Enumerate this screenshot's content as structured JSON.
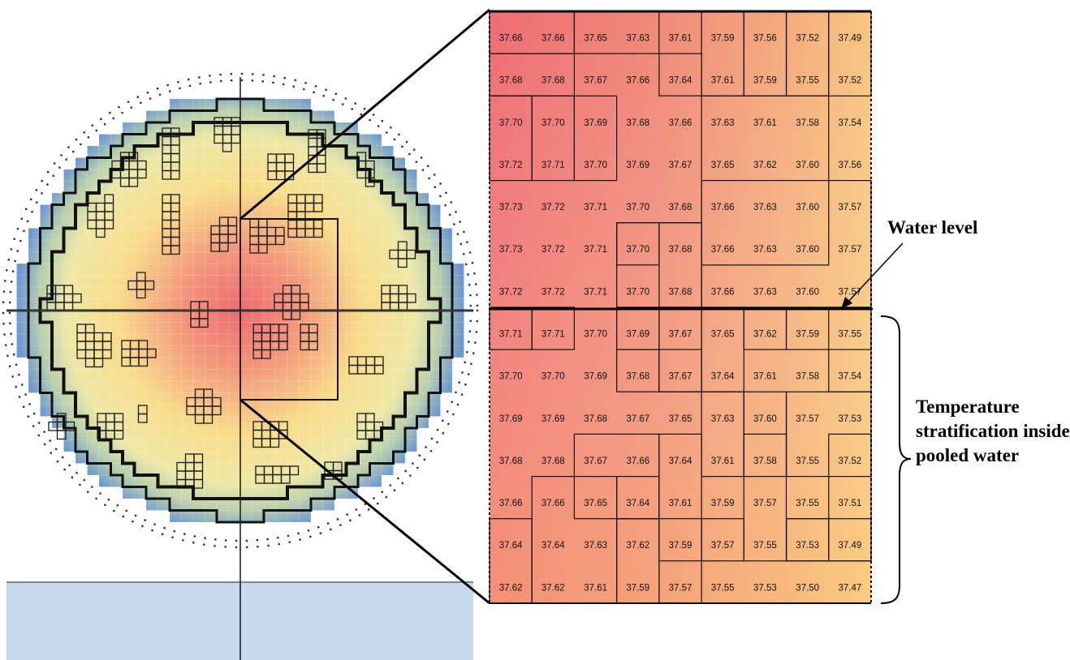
{
  "labels": {
    "water_level": "Water level",
    "stratification": "Temperature stratification inside pooled water"
  },
  "temperature_grid": [
    [
      "37.66",
      "37.66",
      "37.65",
      "37.63",
      "37.61",
      "37.59",
      "37.56",
      "37.52",
      "37.49"
    ],
    [
      "37.68",
      "37.68",
      "37.67",
      "37.66",
      "37.64",
      "37.61",
      "37.59",
      "37.55",
      "37.52"
    ],
    [
      "37.70",
      "37.70",
      "37.69",
      "37.68",
      "37.66",
      "37.63",
      "37.61",
      "37.58",
      "37.54"
    ],
    [
      "37.72",
      "37.71",
      "37.70",
      "37.69",
      "37.67",
      "37.65",
      "37.62",
      "37.60",
      "37.56"
    ],
    [
      "37.73",
      "37.72",
      "37.71",
      "37.70",
      "37.68",
      "37.66",
      "37.63",
      "37.60",
      "37.57"
    ],
    [
      "37.73",
      "37.72",
      "37.71",
      "37.70",
      "37.68",
      "37.66",
      "37.63",
      "37.60",
      "37.57"
    ],
    [
      "37.72",
      "37.72",
      "37.71",
      "37.70",
      "37.68",
      "37.66",
      "37.63",
      "37.60",
      "37.57"
    ],
    [
      "37.71",
      "37.71",
      "37.70",
      "37.69",
      "37.67",
      "37.65",
      "37.62",
      "37.59",
      "37.55"
    ],
    [
      "37.70",
      "37.70",
      "37.69",
      "37.68",
      "37.67",
      "37.64",
      "37.61",
      "37.58",
      "37.54"
    ],
    [
      "37.69",
      "37.69",
      "37.68",
      "37.67",
      "37.65",
      "37.63",
      "37.60",
      "37.57",
      "37.53"
    ],
    [
      "37.68",
      "37.68",
      "37.67",
      "37.66",
      "37.64",
      "37.61",
      "37.58",
      "37.55",
      "37.52"
    ],
    [
      "37.66",
      "37.66",
      "37.65",
      "37.64",
      "37.61",
      "37.59",
      "37.57",
      "37.55",
      "37.51"
    ],
    [
      "37.64",
      "37.64",
      "37.63",
      "37.62",
      "37.59",
      "37.57",
      "37.55",
      "37.53",
      "37.49"
    ],
    [
      "37.62",
      "37.62",
      "37.61",
      "37.59",
      "37.57",
      "37.55",
      "37.53",
      "37.50",
      "37.47"
    ]
  ],
  "water_level_after_row": 7,
  "colors": {
    "hot": "#ee6a6e",
    "warm": "#f4a77a",
    "cool": "#f6d98a",
    "coolant_edge": "#6f9bd4",
    "pool": "#c6d9ef"
  }
}
